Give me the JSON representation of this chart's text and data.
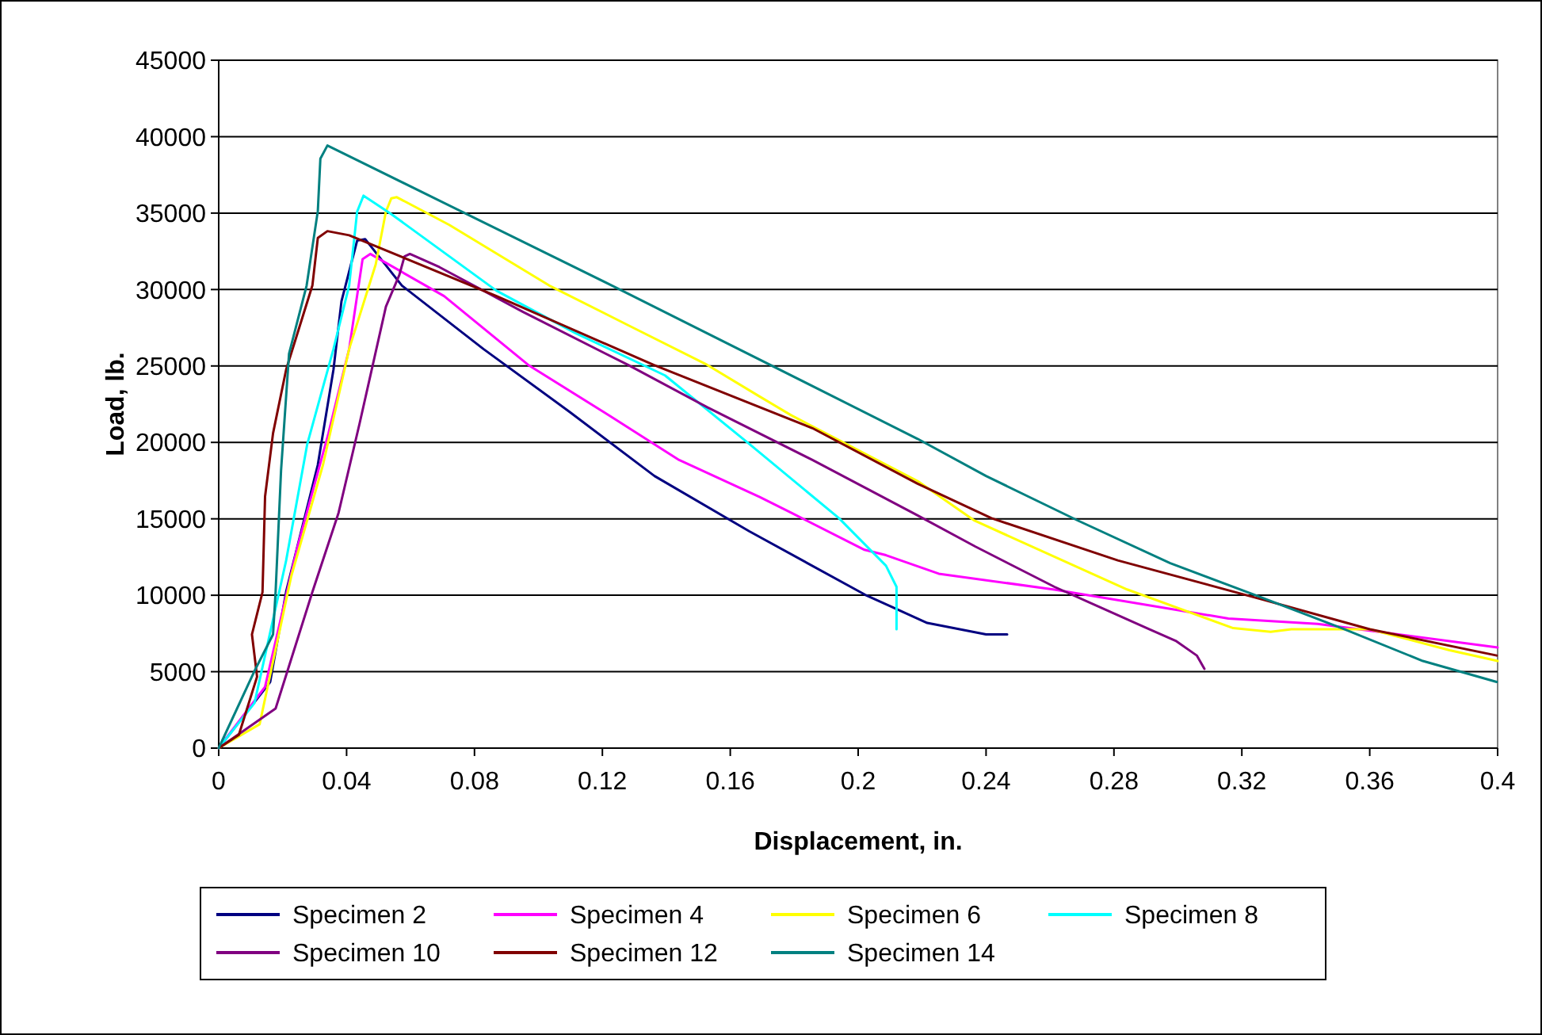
{
  "chart_data": {
    "type": "line",
    "xlabel": "Displacement, in.",
    "ylabel": "Load, lb.",
    "xlim": [
      0,
      0.4
    ],
    "xticks": [
      0,
      0.04,
      0.08,
      0.12,
      0.16,
      0.2,
      0.24,
      0.28,
      0.32,
      0.36,
      0.4
    ],
    "ylim": [
      0,
      45000
    ],
    "yticks": [
      0,
      5000,
      10000,
      15000,
      20000,
      25000,
      30000,
      35000,
      40000,
      45000
    ],
    "grid": "y",
    "legend": "bottom",
    "marker": "none",
    "line_style": "solid",
    "series": [
      {
        "name": "Specimen 2",
        "color": "#000080",
        "x": [
          0,
          0.0161,
          0.0211,
          0.031,
          0.0359,
          0.0384,
          0.0433,
          0.0458,
          0.0573,
          0.0828,
          0.11,
          0.1363,
          0.166,
          0.2022,
          0.2186,
          0.2216,
          0.24,
          0.2466
        ],
        "values": [
          0,
          4330,
          10240,
          18530,
          24770,
          29230,
          33200,
          33300,
          30260,
          26110,
          21960,
          17800,
          14180,
          10030,
          8470,
          8190,
          7440,
          7440
        ]
      },
      {
        "name": "Specimen 4",
        "color": "#ff00ff",
        "x": [
          0,
          0.0145,
          0.0244,
          0.0343,
          0.0408,
          0.045,
          0.0474,
          0.0705,
          0.0968,
          0.1232,
          0.144,
          0.1692,
          0.179,
          0.202,
          0.2087,
          0.2252,
          0.2614,
          0.3158,
          0.3437,
          0.4
        ],
        "values": [
          0,
          4010,
          12970,
          20580,
          26110,
          31990,
          32330,
          29570,
          25070,
          21620,
          18850,
          16430,
          15400,
          12970,
          12620,
          11410,
          10370,
          8480,
          8130,
          6580
        ]
      },
      {
        "name": "Specimen 6",
        "color": "#ffff00",
        "x": [
          0,
          0.0128,
          0.0227,
          0.0326,
          0.0408,
          0.0491,
          0.0523,
          0.054,
          0.0557,
          0.0721,
          0.1034,
          0.128,
          0.1528,
          0.1692,
          0.179,
          0.2186,
          0.2364,
          0.2841,
          0.3173,
          0.329,
          0.3355,
          0.36,
          0.385,
          0.4
        ],
        "values": [
          0,
          1560,
          11250,
          18510,
          26110,
          31640,
          35100,
          35970,
          36040,
          34230,
          30260,
          27670,
          25070,
          23000,
          21780,
          17470,
          14880,
          10380,
          7850,
          7610,
          7780,
          7780,
          6400,
          5700
        ]
      },
      {
        "name": "Specimen 8",
        "color": "#00ffff",
        "x": [
          0,
          0.0112,
          0.0211,
          0.0277,
          0.0318,
          0.0359,
          0.0408,
          0.0433,
          0.0453,
          0.054,
          0.0869,
          0.1116,
          0.1396,
          0.166,
          0.194,
          0.2087,
          0.212,
          0.212
        ],
        "values": [
          0,
          2950,
          12280,
          19890,
          23000,
          26110,
          30260,
          35100,
          36140,
          34930,
          29920,
          27150,
          24380,
          19890,
          15040,
          11930,
          10550,
          7780
        ]
      },
      {
        "name": "Specimen 10",
        "color": "#800080",
        "x": [
          0,
          0.0178,
          0.0293,
          0.0375,
          0.0441,
          0.0523,
          0.0565,
          0.0581,
          0.0598,
          0.069,
          0.0952,
          0.128,
          0.1528,
          0.1857,
          0.2186,
          0.2367,
          0.2614,
          0.291,
          0.2993,
          0.3059,
          0.3083
        ],
        "values": [
          0,
          2590,
          10210,
          15400,
          21270,
          28880,
          30960,
          32160,
          32330,
          31470,
          28530,
          25070,
          22300,
          18850,
          15220,
          13180,
          10550,
          7780,
          7020,
          6060,
          5190
        ]
      },
      {
        "name": "Specimen 12",
        "color": "#800000",
        "x": [
          0,
          0.0063,
          0.012,
          0.0104,
          0.0137,
          0.0145,
          0.017,
          0.0211,
          0.0293,
          0.031,
          0.034,
          0.0408,
          0.0869,
          0.136,
          0.1857,
          0.2186,
          0.2417,
          0.2812,
          0.327,
          0.36,
          0.3997
        ],
        "values": [
          0,
          870,
          4670,
          7440,
          10200,
          16460,
          20600,
          24770,
          30260,
          33370,
          33820,
          33550,
          29570,
          25070,
          20930,
          17300,
          15040,
          12280,
          9690,
          7780,
          6060
        ]
      },
      {
        "name": "Specimen 14",
        "color": "#008080",
        "x": [
          0,
          0.0112,
          0.017,
          0.0178,
          0.0195,
          0.022,
          0.0275,
          0.031,
          0.0318,
          0.034,
          0.123,
          0.2186,
          0.24,
          0.2688,
          0.2976,
          0.324,
          0.352,
          0.3766,
          0.3997
        ],
        "values": [
          0,
          5050,
          7440,
          10240,
          18150,
          25800,
          30260,
          35130,
          38560,
          39420,
          30260,
          20230,
          17800,
          14880,
          12100,
          10030,
          7780,
          5700,
          4330
        ]
      }
    ]
  }
}
